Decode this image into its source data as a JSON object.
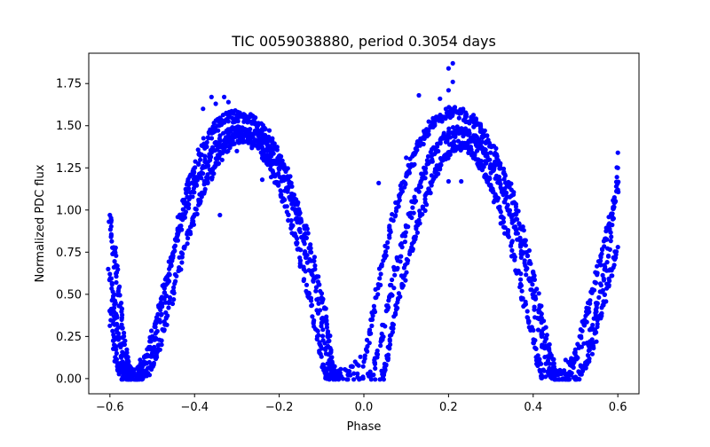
{
  "chart_data": {
    "type": "scatter",
    "title": "TIC 0059038880, period 0.3054 days",
    "xlabel": "Phase",
    "ylabel": "Normalized PDC flux",
    "xlim": [
      -0.65,
      0.65
    ],
    "ylim": [
      -0.09,
      1.93
    ],
    "xticks": [
      -0.6,
      -0.4,
      -0.2,
      0.0,
      0.2,
      0.4,
      0.6
    ],
    "xtick_labels": [
      "−0.6",
      "−0.4",
      "−0.2",
      "0.0",
      "0.2",
      "0.4",
      "0.6"
    ],
    "yticks": [
      0.0,
      0.25,
      0.5,
      0.75,
      1.0,
      1.25,
      1.5,
      1.75
    ],
    "ytick_labels": [
      "0.00",
      "0.25",
      "0.50",
      "0.75",
      "1.00",
      "1.25",
      "1.50",
      "1.75"
    ],
    "grid": false,
    "marker_color": "#0000ff",
    "series": [
      {
        "points": [
          [
            -0.6,
            0.62
          ],
          [
            -0.59,
            0.42
          ],
          [
            -0.58,
            0.25
          ],
          [
            -0.57,
            0.1
          ],
          [
            -0.56,
            0.01
          ],
          [
            -0.54,
            0.02
          ],
          [
            -0.52,
            0.1
          ],
          [
            -0.5,
            0.25
          ],
          [
            -0.48,
            0.45
          ],
          [
            -0.46,
            0.65
          ],
          [
            -0.44,
            0.85
          ],
          [
            -0.42,
            1.02
          ],
          [
            -0.4,
            1.15
          ],
          [
            -0.38,
            1.26
          ],
          [
            -0.36,
            1.34
          ],
          [
            -0.34,
            1.41
          ],
          [
            -0.32,
            1.45
          ],
          [
            -0.3,
            1.47
          ],
          [
            -0.28,
            1.47
          ],
          [
            -0.26,
            1.45
          ],
          [
            -0.24,
            1.41
          ],
          [
            -0.22,
            1.33
          ],
          [
            -0.2,
            1.24
          ],
          [
            -0.18,
            1.12
          ],
          [
            -0.16,
            0.98
          ],
          [
            -0.14,
            0.8
          ],
          [
            -0.12,
            0.58
          ],
          [
            -0.1,
            0.33
          ],
          [
            -0.08,
            0.08
          ],
          [
            -0.07,
            0.01
          ],
          [
            0.02,
            0.02
          ],
          [
            0.04,
            0.22
          ],
          [
            0.06,
            0.48
          ],
          [
            0.08,
            0.7
          ],
          [
            0.1,
            0.9
          ],
          [
            0.12,
            1.06
          ],
          [
            0.14,
            1.2
          ],
          [
            0.16,
            1.32
          ],
          [
            0.18,
            1.4
          ],
          [
            0.2,
            1.45
          ],
          [
            0.22,
            1.47
          ],
          [
            0.24,
            1.46
          ],
          [
            0.26,
            1.42
          ],
          [
            0.28,
            1.36
          ],
          [
            0.3,
            1.27
          ],
          [
            0.32,
            1.16
          ],
          [
            0.34,
            1.03
          ],
          [
            0.36,
            0.88
          ],
          [
            0.38,
            0.7
          ],
          [
            0.4,
            0.48
          ],
          [
            0.42,
            0.25
          ],
          [
            0.44,
            0.05
          ],
          [
            0.45,
            0.01
          ],
          [
            0.48,
            0.02
          ],
          [
            0.5,
            0.12
          ],
          [
            0.52,
            0.32
          ],
          [
            0.54,
            0.52
          ],
          [
            0.56,
            0.72
          ],
          [
            0.58,
            0.92
          ],
          [
            0.6,
            1.12
          ]
        ]
      },
      {
        "points": [
          [
            -0.6,
            0.4
          ],
          [
            -0.59,
            0.2
          ],
          [
            -0.58,
            0.05
          ],
          [
            -0.57,
            0.01
          ],
          [
            -0.55,
            0.0
          ],
          [
            -0.53,
            0.01
          ],
          [
            -0.51,
            0.03
          ],
          [
            -0.49,
            0.14
          ],
          [
            -0.47,
            0.32
          ],
          [
            -0.45,
            0.52
          ],
          [
            -0.43,
            0.72
          ],
          [
            -0.41,
            0.9
          ],
          [
            -0.39,
            1.05
          ],
          [
            -0.37,
            1.18
          ],
          [
            -0.35,
            1.28
          ],
          [
            -0.33,
            1.36
          ],
          [
            -0.31,
            1.41
          ],
          [
            -0.29,
            1.43
          ],
          [
            -0.27,
            1.42
          ],
          [
            -0.25,
            1.38
          ],
          [
            -0.23,
            1.3
          ],
          [
            -0.21,
            1.2
          ],
          [
            -0.19,
            1.06
          ],
          [
            -0.17,
            0.9
          ],
          [
            -0.15,
            0.7
          ],
          [
            -0.13,
            0.48
          ],
          [
            -0.11,
            0.25
          ],
          [
            -0.095,
            0.05
          ],
          [
            -0.085,
            0.01
          ],
          [
            0.045,
            0.01
          ],
          [
            0.055,
            0.12
          ],
          [
            0.07,
            0.32
          ],
          [
            0.09,
            0.55
          ],
          [
            0.11,
            0.76
          ],
          [
            0.13,
            0.94
          ],
          [
            0.15,
            1.1
          ],
          [
            0.17,
            1.23
          ],
          [
            0.19,
            1.32
          ],
          [
            0.21,
            1.38
          ],
          [
            0.23,
            1.39
          ],
          [
            0.25,
            1.36
          ],
          [
            0.27,
            1.3
          ],
          [
            0.29,
            1.2
          ],
          [
            0.31,
            1.08
          ],
          [
            0.33,
            0.93
          ],
          [
            0.35,
            0.76
          ],
          [
            0.37,
            0.56
          ],
          [
            0.39,
            0.34
          ],
          [
            0.41,
            0.12
          ],
          [
            0.42,
            0.02
          ],
          [
            0.47,
            0.0
          ],
          [
            0.5,
            0.01
          ],
          [
            0.52,
            0.06
          ],
          [
            0.54,
            0.2
          ],
          [
            0.56,
            0.38
          ],
          [
            0.58,
            0.58
          ],
          [
            0.6,
            0.78
          ]
        ]
      },
      {
        "points": [
          [
            -0.6,
            0.97
          ],
          [
            -0.59,
            0.75
          ],
          [
            -0.58,
            0.52
          ],
          [
            -0.57,
            0.3
          ],
          [
            -0.56,
            0.12
          ],
          [
            -0.55,
            0.02
          ],
          [
            -0.5,
            0.15
          ],
          [
            -0.48,
            0.38
          ],
          [
            -0.46,
            0.62
          ],
          [
            -0.44,
            0.88
          ],
          [
            -0.42,
            1.1
          ],
          [
            -0.4,
            1.25
          ],
          [
            -0.38,
            1.38
          ],
          [
            -0.36,
            1.47
          ],
          [
            -0.34,
            1.52
          ],
          [
            -0.32,
            1.55
          ],
          [
            -0.3,
            1.56
          ],
          [
            -0.28,
            1.55
          ],
          [
            -0.26,
            1.53
          ],
          [
            -0.24,
            1.48
          ],
          [
            -0.22,
            1.42
          ],
          [
            -0.2,
            1.32
          ],
          [
            -0.18,
            1.2
          ],
          [
            -0.16,
            1.06
          ],
          [
            -0.14,
            0.9
          ],
          [
            -0.12,
            0.7
          ],
          [
            -0.1,
            0.48
          ],
          [
            -0.085,
            0.28
          ],
          [
            -0.075,
            0.1
          ],
          [
            -0.065,
            0.02
          ],
          [
            0.0,
            0.1
          ],
          [
            0.02,
            0.35
          ],
          [
            0.04,
            0.62
          ],
          [
            0.06,
            0.85
          ],
          [
            0.08,
            1.04
          ],
          [
            0.1,
            1.2
          ],
          [
            0.12,
            1.33
          ],
          [
            0.14,
            1.43
          ],
          [
            0.16,
            1.5
          ],
          [
            0.18,
            1.55
          ],
          [
            0.2,
            1.58
          ],
          [
            0.22,
            1.58
          ],
          [
            0.24,
            1.56
          ],
          [
            0.26,
            1.52
          ],
          [
            0.28,
            1.46
          ],
          [
            0.3,
            1.38
          ],
          [
            0.32,
            1.28
          ],
          [
            0.34,
            1.16
          ],
          [
            0.36,
            1.0
          ],
          [
            0.38,
            0.82
          ],
          [
            0.4,
            0.6
          ],
          [
            0.42,
            0.36
          ],
          [
            0.44,
            0.15
          ],
          [
            0.455,
            0.03
          ],
          [
            0.53,
            0.2
          ],
          [
            0.55,
            0.42
          ],
          [
            0.57,
            0.65
          ],
          [
            0.59,
            0.95
          ],
          [
            0.6,
            1.25
          ]
        ]
      }
    ],
    "outliers": [
      [
        -0.36,
        1.67
      ],
      [
        -0.33,
        1.67
      ],
      [
        -0.35,
        1.63
      ],
      [
        -0.32,
        1.64
      ],
      [
        -0.38,
        1.6
      ],
      [
        -0.34,
        0.97
      ],
      [
        -0.22,
        1.24
      ],
      [
        -0.24,
        1.18
      ],
      [
        -0.3,
        1.35
      ],
      [
        0.21,
        1.87
      ],
      [
        0.2,
        1.84
      ],
      [
        0.21,
        1.76
      ],
      [
        0.2,
        1.71
      ],
      [
        0.18,
        1.66
      ],
      [
        0.13,
        1.68
      ],
      [
        0.16,
        1.52
      ],
      [
        0.2,
        1.17
      ],
      [
        0.23,
        1.17
      ],
      [
        0.17,
        1.2
      ],
      [
        0.09,
        1.16
      ],
      [
        0.1,
        1.31
      ],
      [
        0.035,
        1.16
      ],
      [
        0.3,
        1.22
      ],
      [
        0.6,
        1.34
      ]
    ]
  }
}
